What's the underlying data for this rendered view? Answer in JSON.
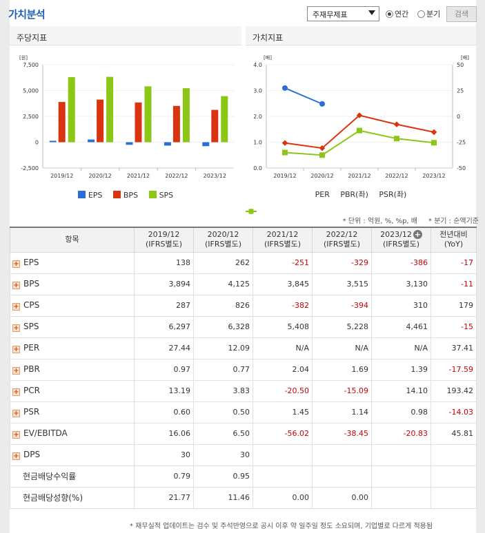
{
  "header": {
    "title": "가치분석",
    "select_value": "주재무제표",
    "radio_annual": "연간",
    "radio_quarter": "분기",
    "search_label": "검색"
  },
  "left_panel": {
    "title": "주당지표",
    "unit": "[원]",
    "legend": [
      "EPS",
      "BPS",
      "SPS"
    ]
  },
  "right_panel": {
    "title": "가치지표",
    "unit_left": "[배]",
    "unit_right": "[배]",
    "legend": [
      "PER",
      "PBR(좌)",
      "PSR(좌)"
    ]
  },
  "colors": {
    "eps": "#2a6fd6",
    "bps": "#d9330f",
    "sps": "#8cc715",
    "per": "#2a6fd6",
    "pbr": "#d9330f",
    "psr": "#8cc715"
  },
  "chart_data": [
    {
      "type": "bar",
      "ylabel": "[원]",
      "categories": [
        "2019/12",
        "2020/12",
        "2021/12",
        "2022/12",
        "2023/12"
      ],
      "ylim": [
        -2500,
        7500
      ],
      "yticks": [
        "7,500",
        "5,000",
        "2,500",
        "0",
        "-2,500"
      ],
      "series": [
        {
          "name": "EPS",
          "values": [
            138,
            262,
            -251,
            -329,
            -386
          ]
        },
        {
          "name": "BPS",
          "values": [
            3894,
            4125,
            3845,
            3515,
            3130
          ]
        },
        {
          "name": "SPS",
          "values": [
            6297,
            6328,
            5408,
            5228,
            4461
          ]
        }
      ],
      "legend": "bottom"
    },
    {
      "type": "line",
      "categories": [
        "2019/12",
        "2020/12",
        "2021/12",
        "2022/12",
        "2023/12"
      ],
      "ylim_left": [
        0,
        4
      ],
      "ylim_right": [
        -50,
        50
      ],
      "yticks_left": [
        "4.0",
        "3.0",
        "2.0",
        "1.0",
        "0.0"
      ],
      "yticks_right": [
        "50",
        "25",
        "0",
        "-25",
        "-50"
      ],
      "series": [
        {
          "name": "PER",
          "axis": "right",
          "values": [
            27.44,
            12.09,
            null,
            null,
            null
          ]
        },
        {
          "name": "PBR(좌)",
          "axis": "left",
          "values": [
            0.97,
            0.77,
            2.04,
            1.69,
            1.39
          ]
        },
        {
          "name": "PSR(좌)",
          "axis": "left",
          "values": [
            0.6,
            0.5,
            1.45,
            1.14,
            0.98
          ]
        }
      ],
      "legend": "bottom"
    }
  ],
  "note_unit": "* 단위 : 억원, %, %p, 배",
  "note_quarter": "* 분기 : 순액기준",
  "table": {
    "col_item": "항목",
    "columns": [
      {
        "year": "2019/12",
        "basis": "(IFRS별도)"
      },
      {
        "year": "2020/12",
        "basis": "(IFRS별도)"
      },
      {
        "year": "2021/12",
        "basis": "(IFRS별도)"
      },
      {
        "year": "2022/12",
        "basis": "(IFRS별도)"
      },
      {
        "year": "2023/12",
        "basis": "(IFRS별도)"
      }
    ],
    "col_yoy_1": "전년대비",
    "col_yoy_2": "(YoY)",
    "rows": [
      {
        "label": "EPS",
        "expand": true,
        "values": [
          "138",
          "262",
          "-251",
          "-329",
          "-386",
          "-17"
        ]
      },
      {
        "label": "BPS",
        "expand": true,
        "values": [
          "3,894",
          "4,125",
          "3,845",
          "3,515",
          "3,130",
          "-11"
        ]
      },
      {
        "label": "CPS",
        "expand": true,
        "values": [
          "287",
          "826",
          "-382",
          "-394",
          "310",
          "179"
        ]
      },
      {
        "label": "SPS",
        "expand": true,
        "values": [
          "6,297",
          "6,328",
          "5,408",
          "5,228",
          "4,461",
          "-15"
        ]
      },
      {
        "label": "PER",
        "expand": true,
        "values": [
          "27.44",
          "12.09",
          "N/A",
          "N/A",
          "N/A",
          "37.41"
        ]
      },
      {
        "label": "PBR",
        "expand": true,
        "values": [
          "0.97",
          "0.77",
          "2.04",
          "1.69",
          "1.39",
          "-17.59"
        ]
      },
      {
        "label": "PCR",
        "expand": true,
        "values": [
          "13.19",
          "3.83",
          "-20.50",
          "-15.09",
          "14.10",
          "193.42"
        ]
      },
      {
        "label": "PSR",
        "expand": true,
        "values": [
          "0.60",
          "0.50",
          "1.45",
          "1.14",
          "0.98",
          "-14.03"
        ]
      },
      {
        "label": "EV/EBITDA",
        "expand": true,
        "values": [
          "16.06",
          "6.50",
          "-56.02",
          "-38.45",
          "-20.83",
          "45.81"
        ]
      },
      {
        "label": "DPS",
        "expand": true,
        "values": [
          "30",
          "30",
          "",
          "",
          "",
          ""
        ]
      },
      {
        "label": "현금배당수익률",
        "expand": false,
        "values": [
          "0.79",
          "0.95",
          "",
          "",
          "",
          ""
        ]
      },
      {
        "label": "현금배당성향(%)",
        "expand": false,
        "values": [
          "21.77",
          "11.46",
          "0.00",
          "0.00",
          "",
          ""
        ]
      }
    ]
  },
  "footnote": "* 재무실적 업데이트는 검수 및 주석반영으로 공시 이후 약 일주일 정도 소요되며, 기업별로 다르게 적용됨"
}
